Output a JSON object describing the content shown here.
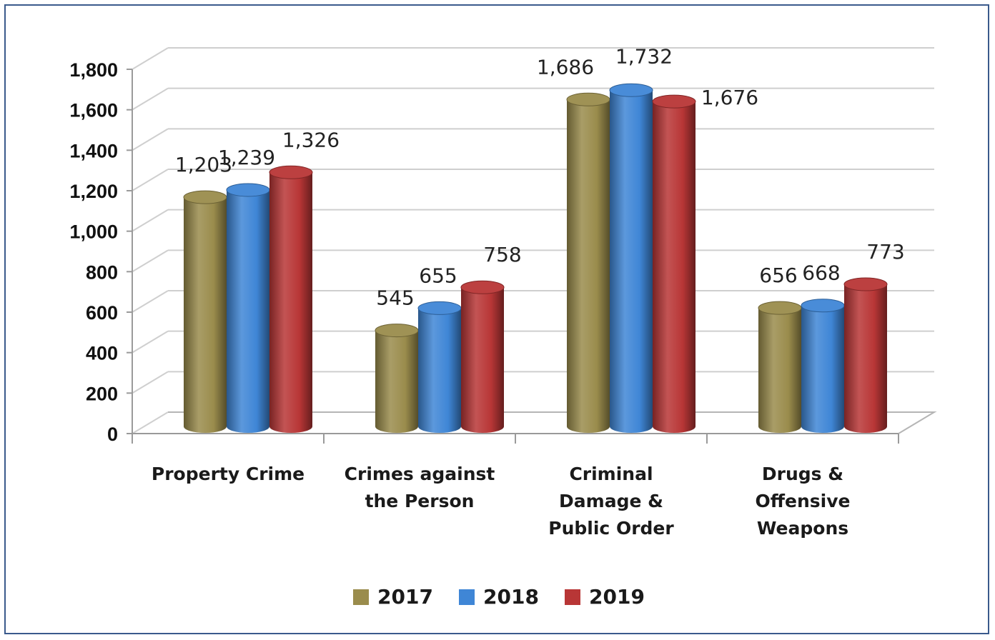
{
  "chart_data": {
    "type": "bar",
    "categories": [
      [
        "Property Crime"
      ],
      [
        "Crimes against",
        "the Person"
      ],
      [
        "Criminal",
        "Damage &",
        "Public Order"
      ],
      [
        "Drugs &",
        "Offensive",
        "Weapons"
      ]
    ],
    "series": [
      {
        "name": "2017",
        "values": [
          1203,
          545,
          1686,
          656
        ],
        "labels": [
          "1,203",
          "545",
          "1,686",
          "656"
        ],
        "color": "#9a8c4c"
      },
      {
        "name": "2018",
        "values": [
          1239,
          655,
          1732,
          668
        ],
        "labels": [
          "1,239",
          "655",
          "1,732",
          "668"
        ],
        "color": "#3f86d6"
      },
      {
        "name": "2019",
        "values": [
          1326,
          758,
          1676,
          773
        ],
        "labels": [
          "1,326",
          "758",
          "1,676",
          "773"
        ],
        "color": "#b83636"
      }
    ],
    "yticks": [
      0,
      200,
      400,
      600,
      800,
      1000,
      1200,
      1400,
      1600,
      1800
    ],
    "ytick_labels": [
      "0",
      "200",
      "400",
      "600",
      "800",
      "1,000",
      "1,200",
      "1,400",
      "1,600",
      "1,800"
    ],
    "ylim": [
      0,
      1800
    ],
    "grid": true,
    "legend_position": "bottom",
    "style": "3d-cylinder"
  }
}
